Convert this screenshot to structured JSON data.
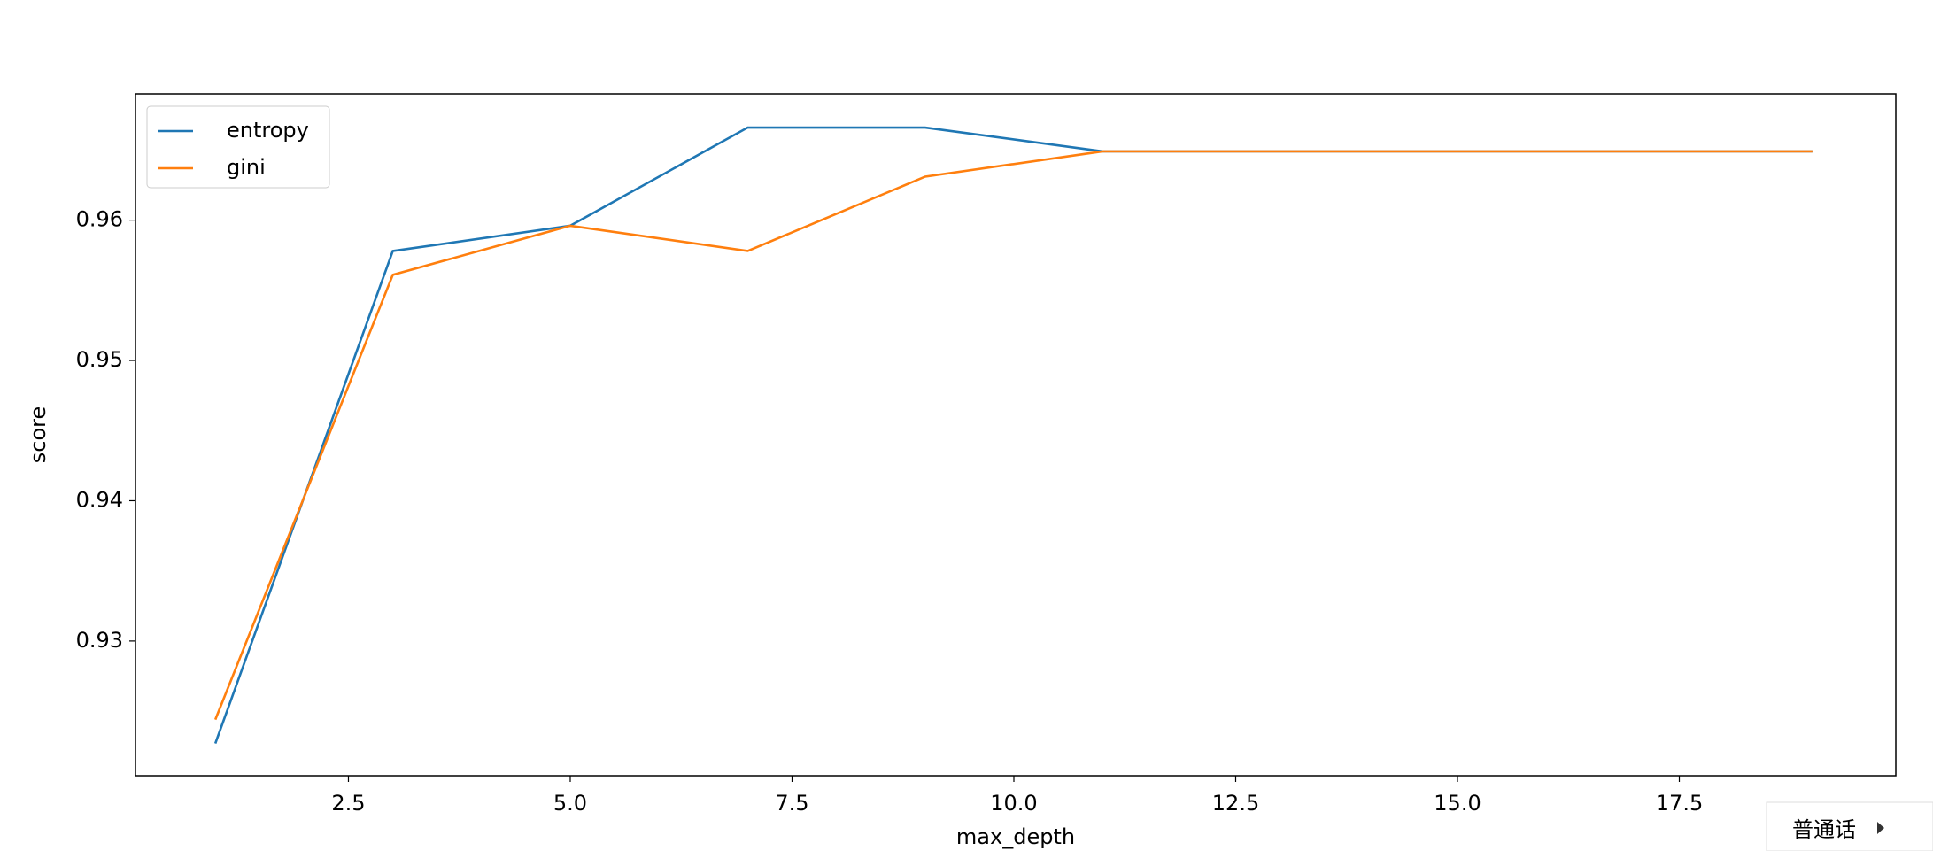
{
  "chart_data": {
    "type": "line",
    "x_label": "max_depth",
    "y_label": "score",
    "x": [
      1,
      3,
      5,
      7,
      9,
      11,
      13,
      15,
      17,
      19
    ],
    "series": [
      {
        "name": "entropy",
        "color": "#1f77b4",
        "values": [
          0.9227,
          0.9578,
          0.9596,
          0.9666,
          0.9666,
          0.9649,
          0.9649,
          0.9649,
          0.9649,
          0.9649
        ]
      },
      {
        "name": "gini",
        "color": "#ff7f0e",
        "values": [
          0.9244,
          0.9561,
          0.9596,
          0.9578,
          0.9631,
          0.9649,
          0.9649,
          0.9649,
          0.9649,
          0.9649
        ]
      }
    ],
    "xlim": [
      0.1,
      19.94
    ],
    "ylim": [
      0.9204,
      0.969
    ],
    "xticks": [
      2.5,
      {
        "value": 5,
        "label": "5.0"
      },
      7.5,
      {
        "value": 10,
        "label": "10.0"
      },
      12.5,
      {
        "value": 15,
        "label": "15.0"
      },
      17.5
    ],
    "yticks": [
      0.93,
      0.94,
      0.95,
      0.96
    ],
    "grid": false,
    "legend": "upper left"
  },
  "widget": {
    "label": "普通话"
  }
}
